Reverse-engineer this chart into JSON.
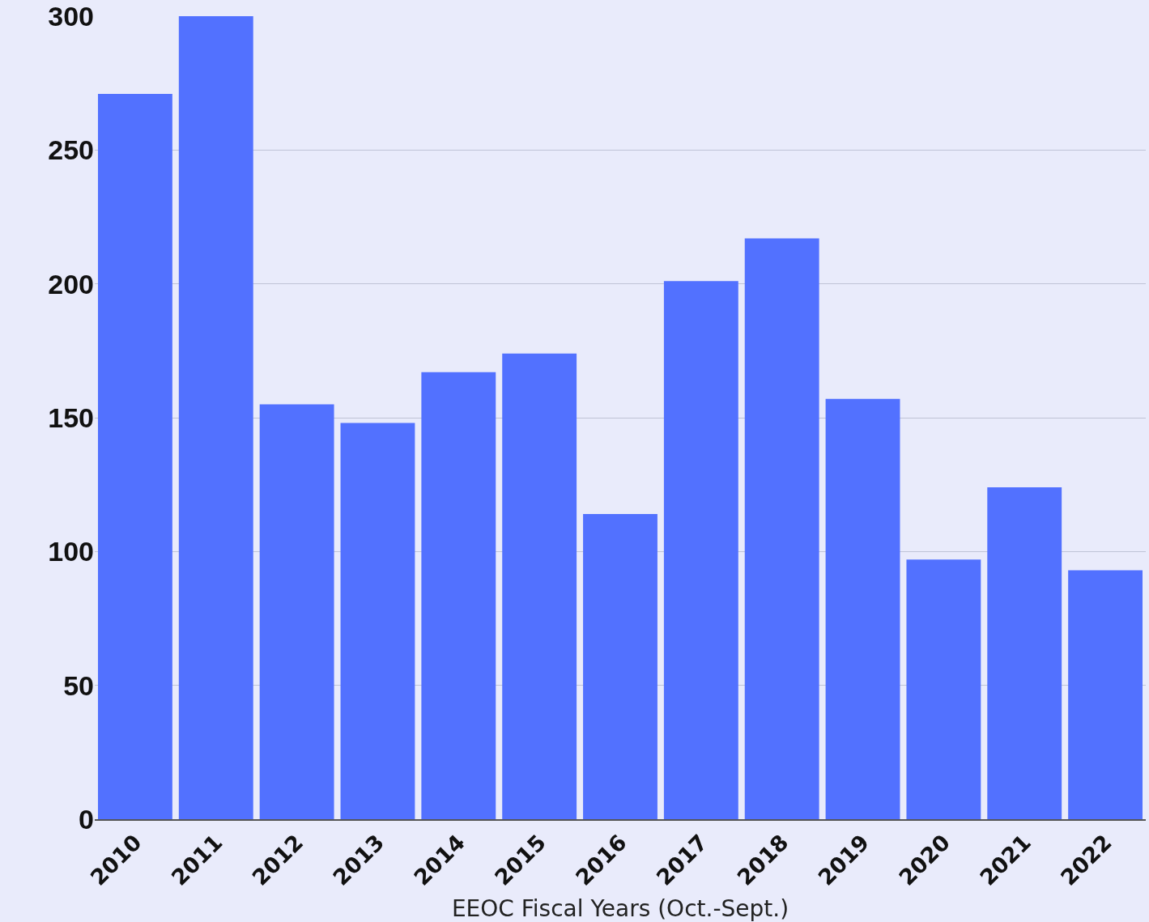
{
  "chart_data": {
    "type": "bar",
    "xlabel": "EEOC Fiscal Years (Oct.-Sept.)",
    "categories": [
      "2010",
      "2011",
      "2012",
      "2013",
      "2014",
      "2015",
      "2016",
      "2017",
      "2018",
      "2019",
      "2020",
      "2021",
      "2022"
    ],
    "values": [
      271,
      300,
      155,
      148,
      167,
      174,
      114,
      201,
      217,
      157,
      97,
      124,
      93
    ],
    "color": "#5271ff",
    "ylim": [
      0,
      300
    ],
    "yticks": [
      0,
      50,
      100,
      150,
      200,
      250,
      300
    ],
    "grid": "y",
    "legend": false
  }
}
